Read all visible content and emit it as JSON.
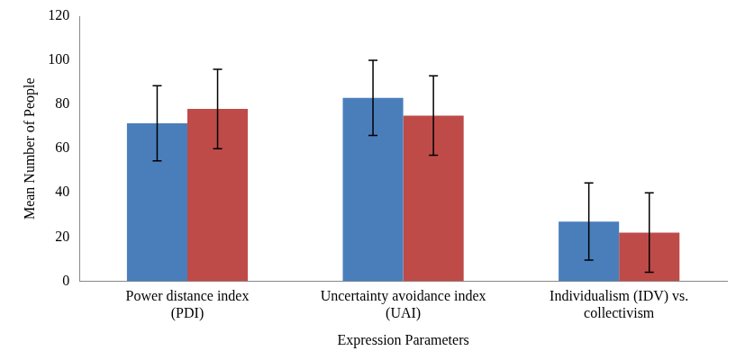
{
  "chart_data": {
    "type": "bar",
    "x_label": "Expression Parameters",
    "y_label": "Mean Number of People",
    "categories": [
      [
        "Power distance index",
        "(PDI)"
      ],
      [
        "Uncertainty avoidance index",
        "(UAI)"
      ],
      [
        "Individualism (IDV) vs.",
        "collectivism"
      ]
    ],
    "series": [
      {
        "color": "#4a7ebb",
        "values": [
          71.5,
          83,
          27
        ],
        "errors": [
          17,
          17,
          17.5
        ]
      },
      {
        "color": "#be4b48",
        "values": [
          78,
          75,
          22
        ],
        "errors": [
          18,
          18,
          18
        ]
      }
    ],
    "ylim": [
      0,
      120
    ],
    "yticks": [
      0,
      20,
      40,
      60,
      80,
      100,
      120
    ],
    "grid": false
  }
}
